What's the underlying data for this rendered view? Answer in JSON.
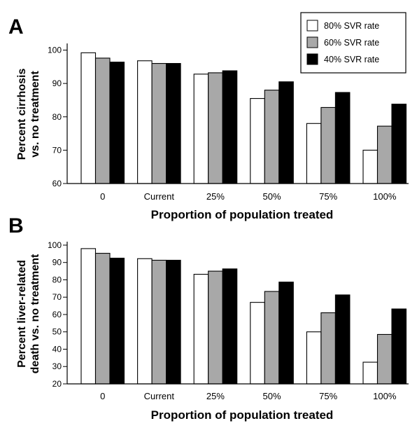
{
  "colors": {
    "series": [
      "#ffffff",
      "#a8a8a8",
      "#000000"
    ],
    "stroke": "#000000"
  },
  "legend": {
    "placement": "top-right",
    "entries": [
      "80% SVR rate",
      "60% SVR rate",
      "40% SVR rate"
    ]
  },
  "chart_data": [
    {
      "type": "bar",
      "panel": "A",
      "categories": [
        "0",
        "Current",
        "25%",
        "50%",
        "75%",
        "100%"
      ],
      "series": [
        {
          "name": "80% SVR rate",
          "values": [
            99.2,
            96.8,
            92.8,
            85.5,
            78.0,
            70.0
          ]
        },
        {
          "name": "60% SVR rate",
          "values": [
            97.6,
            96.0,
            93.2,
            88.0,
            82.8,
            77.2
          ]
        },
        {
          "name": "40% SVR rate",
          "values": [
            96.4,
            96.0,
            93.8,
            90.5,
            87.3,
            83.8
          ]
        }
      ],
      "yticks": [
        60,
        70,
        80,
        90,
        100
      ],
      "ylim": [
        60,
        102
      ],
      "xlabel": "Proportion of population treated",
      "ylabel": [
        "Percent cirrhosis",
        "vs. no treatment"
      ],
      "grid": false
    },
    {
      "type": "bar",
      "panel": "B",
      "categories": [
        "0",
        "Current",
        "25%",
        "50%",
        "75%",
        "100%"
      ],
      "series": [
        {
          "name": "80% SVR rate",
          "values": [
            98.0,
            92.2,
            83.2,
            67.0,
            50.0,
            32.5
          ]
        },
        {
          "name": "60% SVR rate",
          "values": [
            95.3,
            91.3,
            85.0,
            73.3,
            61.0,
            48.5
          ]
        },
        {
          "name": "40% SVR rate",
          "values": [
            92.5,
            91.3,
            86.3,
            78.7,
            71.3,
            63.2
          ]
        }
      ],
      "yticks": [
        20,
        30,
        40,
        50,
        60,
        70,
        80,
        90,
        100
      ],
      "ylim": [
        20,
        102
      ],
      "xlabel": "Proportion of population treated",
      "ylabel": [
        "Percent liver-related",
        "death vs. no treatment"
      ],
      "grid": false
    }
  ]
}
